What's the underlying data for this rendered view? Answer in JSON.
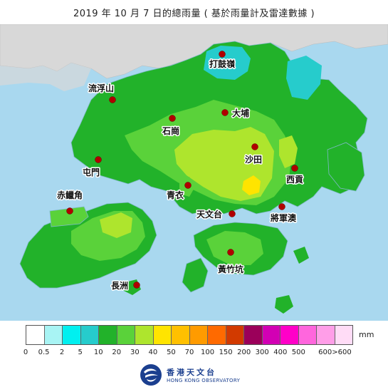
{
  "title": "2019 年 10  月  7  日的總雨量 ( 基於雨量計及雷達數據 )",
  "stations": [
    {
      "name": "打鼓嶺",
      "key": "ta-kwu-ling"
    },
    {
      "name": "流浮山",
      "key": "lau-fau-shan"
    },
    {
      "name": "大埔",
      "key": "tai-po"
    },
    {
      "name": "石崗",
      "key": "shek-kong"
    },
    {
      "name": "沙田",
      "key": "sha-tin"
    },
    {
      "name": "屯門",
      "key": "tuen-mun"
    },
    {
      "name": "西貢",
      "key": "sai-kung"
    },
    {
      "name": "青衣",
      "key": "tsing-yi"
    },
    {
      "name": "赤鱲角",
      "key": "chek-lap-kok"
    },
    {
      "name": "天文台",
      "key": "observatory"
    },
    {
      "name": "將軍澳",
      "key": "tseung-kwan-o"
    },
    {
      "name": "黃竹坑",
      "key": "wong-chuk-hang"
    },
    {
      "name": "長洲",
      "key": "cheung-chau"
    }
  ],
  "legend": {
    "unit": "mm",
    "colors": [
      "#ffffff",
      "#a8f4f4",
      "#00f0f0",
      "#26cccc",
      "#22b22a",
      "#5ad23a",
      "#aee52d",
      "#ffe400",
      "#ffc000",
      "#ff9b00",
      "#ff6a00",
      "#d23a00",
      "#9b005a",
      "#d200b4",
      "#ff00c8",
      "#ff66dd",
      "#ff9ee8",
      "#ffdcf6"
    ],
    "ticks": [
      "0",
      "0.5",
      "2",
      "5",
      "10",
      "20",
      "30",
      "40",
      "50",
      "70",
      "100",
      "150",
      "200",
      "300",
      "400",
      "500",
      "600>600"
    ]
  },
  "logo": {
    "cn": "香港天文台",
    "en": "HONG KONG OBSERVATORY"
  }
}
